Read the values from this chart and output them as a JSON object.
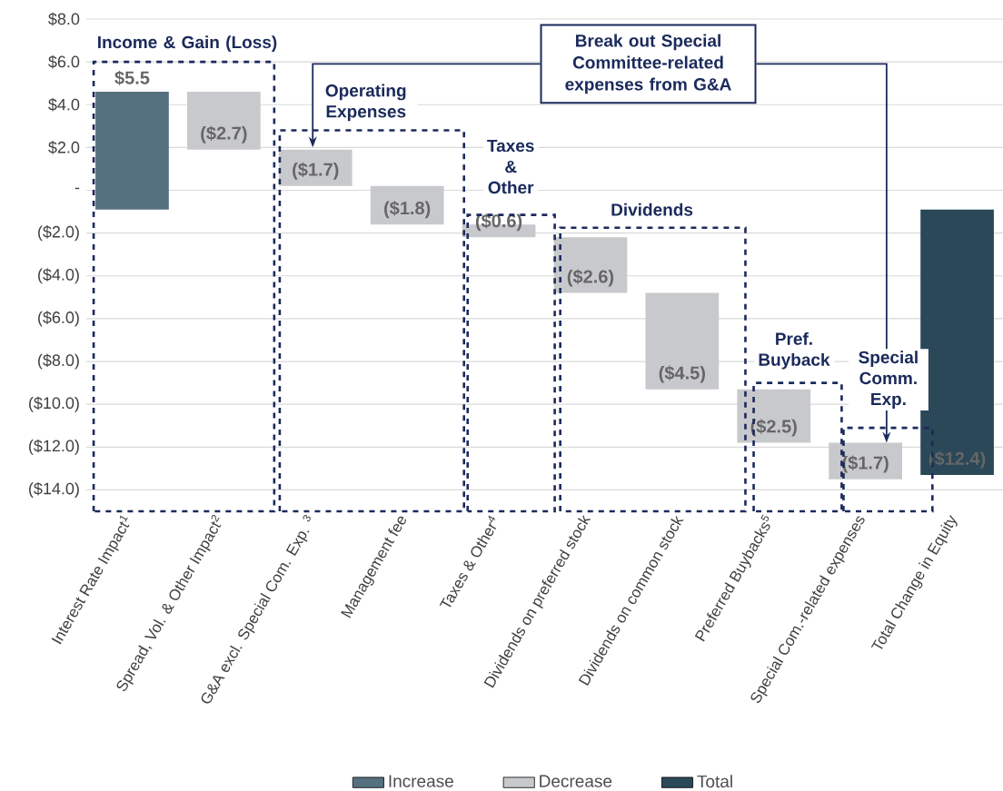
{
  "chart_data": {
    "type": "bar",
    "categories": [
      "Interest Rate Impact$^{1}$",
      "Spread, Vol. & Other Impact$^{2}$",
      "G&A excl. Special Com. Exp. $^{3}$",
      "Management fee",
      "Taxes & Other$^{4}$",
      "Dividends on preferred stock",
      "Dividends on common stock",
      "Preferred Buybacks$^{5}$",
      "Special Com.-related expenses",
      "Total Change in Equity"
    ],
    "series": [
      {
        "name": "Increase",
        "color": "#557180",
        "base": [
          -0.9,
          null,
          null,
          null,
          null,
          null,
          null,
          null,
          null,
          null
        ],
        "values": [
          5.5,
          null,
          null,
          null,
          null,
          null,
          null,
          null,
          null,
          null
        ],
        "value_labels": [
          "$5.5",
          null,
          null,
          null,
          null,
          null,
          null,
          null,
          null,
          null
        ]
      },
      {
        "name": "Decrease",
        "color": "#c8c9cc",
        "base": [
          null,
          4.6,
          1.9,
          0.2,
          -1.6,
          -2.2,
          -4.8,
          -9.3,
          -11.8,
          null
        ],
        "values": [
          null,
          -2.7,
          -1.7,
          -1.8,
          -0.6,
          -2.6,
          -4.5,
          -2.5,
          -1.7,
          null
        ],
        "value_labels": [
          null,
          "($2.7)",
          "($1.7)",
          "($1.8)",
          "($0.6)",
          "($2.6)",
          "($4.5)",
          "($2.5)",
          "($1.7)",
          null
        ]
      },
      {
        "name": "Total",
        "color": "#2a4858",
        "base": [
          null,
          null,
          null,
          null,
          null,
          null,
          null,
          null,
          null,
          -0.9
        ],
        "values": [
          null,
          null,
          null,
          null,
          null,
          null,
          null,
          null,
          null,
          -12.4
        ],
        "value_labels": [
          null,
          null,
          null,
          null,
          null,
          null,
          null,
          null,
          null,
          "($12.4)"
        ]
      }
    ],
    "ylim": [
      -15,
      8
    ],
    "yticks": [
      {
        "value": 8,
        "label": "$8.0"
      },
      {
        "value": 6,
        "label": "$6.0"
      },
      {
        "value": 4,
        "label": "$4.0"
      },
      {
        "value": 2,
        "label": "$2.0"
      },
      {
        "value": 0,
        "label": "-"
      },
      {
        "value": -2,
        "label": "($2.0)"
      },
      {
        "value": -4,
        "label": "($4.0)"
      },
      {
        "value": -6,
        "label": "($6.0)"
      },
      {
        "value": -8,
        "label": "($8.0)"
      },
      {
        "value": -10,
        "label": "($10.0)"
      },
      {
        "value": -12,
        "label": "($12.0)"
      },
      {
        "value": -14,
        "label": "($14.0)"
      }
    ],
    "grid": "y",
    "legend": "bottom",
    "annotations": [
      "Income & Gain (Loss)",
      "Operating Expenses",
      "Taxes & Other",
      "Dividends",
      "Pref. Buyback",
      "Special Comm. Exp.",
      "Break out Special Committee-related expenses from G&A"
    ]
  }
}
